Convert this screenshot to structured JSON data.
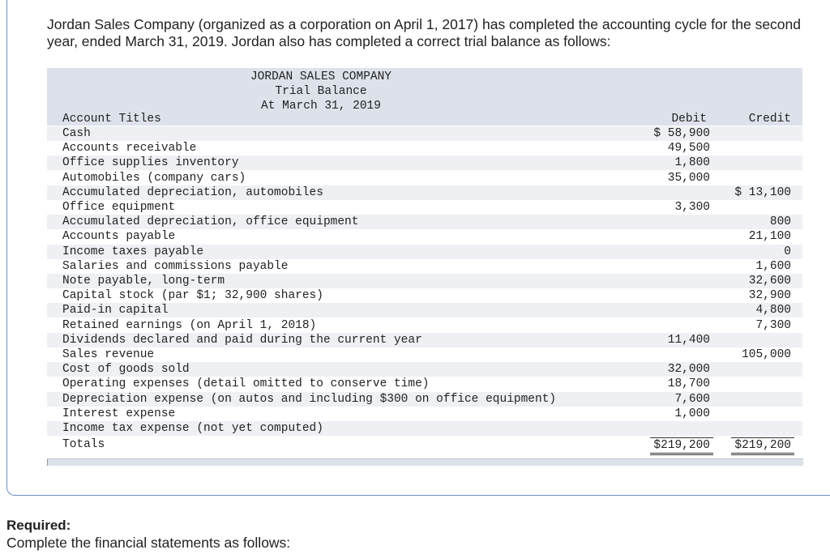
{
  "intro": "Jordan Sales Company (organized as a corporation on April 1, 2017) has completed the accounting cycle for the second year, ended March 31, 2019. Jordan also has completed a correct trial balance as follows:",
  "trial_balance": {
    "company": "JORDAN SALES COMPANY",
    "title": "Trial Balance",
    "date": "At March 31, 2019",
    "col_account": "Account Titles",
    "col_debit": "Debit",
    "col_credit": "Credit",
    "rows": [
      {
        "account": "Cash",
        "debit": "$ 58,900",
        "credit": ""
      },
      {
        "account": "Accounts receivable",
        "debit": "49,500",
        "credit": ""
      },
      {
        "account": "Office supplies inventory",
        "debit": "1,800",
        "credit": ""
      },
      {
        "account": "Automobiles (company cars)",
        "debit": "35,000",
        "credit": ""
      },
      {
        "account": "Accumulated depreciation, automobiles",
        "debit": "",
        "credit": "$ 13,100"
      },
      {
        "account": "Office equipment",
        "debit": "3,300",
        "credit": ""
      },
      {
        "account": "Accumulated depreciation, office equipment",
        "debit": "",
        "credit": "800"
      },
      {
        "account": "Accounts payable",
        "debit": "",
        "credit": "21,100"
      },
      {
        "account": "Income taxes payable",
        "debit": "",
        "credit": "0"
      },
      {
        "account": "Salaries and commissions payable",
        "debit": "",
        "credit": "1,600"
      },
      {
        "account": "Note payable, long-term",
        "debit": "",
        "credit": "32,600"
      },
      {
        "account": "Capital stock (par $1; 32,900 shares)",
        "debit": "",
        "credit": "32,900"
      },
      {
        "account": "Paid-in capital",
        "debit": "",
        "credit": "4,800"
      },
      {
        "account": "Retained earnings (on April 1, 2018)",
        "debit": "",
        "credit": "7,300"
      },
      {
        "account": "Dividends declared and paid during the current year",
        "debit": "11,400",
        "credit": ""
      },
      {
        "account": "Sales revenue",
        "debit": "",
        "credit": "105,000"
      },
      {
        "account": "Cost of goods sold",
        "debit": "32,000",
        "credit": ""
      },
      {
        "account": "Operating expenses (detail omitted to conserve time)",
        "debit": "18,700",
        "credit": ""
      },
      {
        "account": "Depreciation expense (on autos and including $300 on office equipment)",
        "debit": "7,600",
        "credit": ""
      },
      {
        "account": "Interest expense",
        "debit": "1,000",
        "credit": ""
      },
      {
        "account": "Income tax expense (not yet computed)",
        "debit": "",
        "credit": ""
      }
    ],
    "totals": {
      "account": "Totals",
      "debit": "$219,200",
      "credit": "$219,200"
    }
  },
  "required_label": "Required:",
  "instruction": "Complete the financial statements as follows:"
}
